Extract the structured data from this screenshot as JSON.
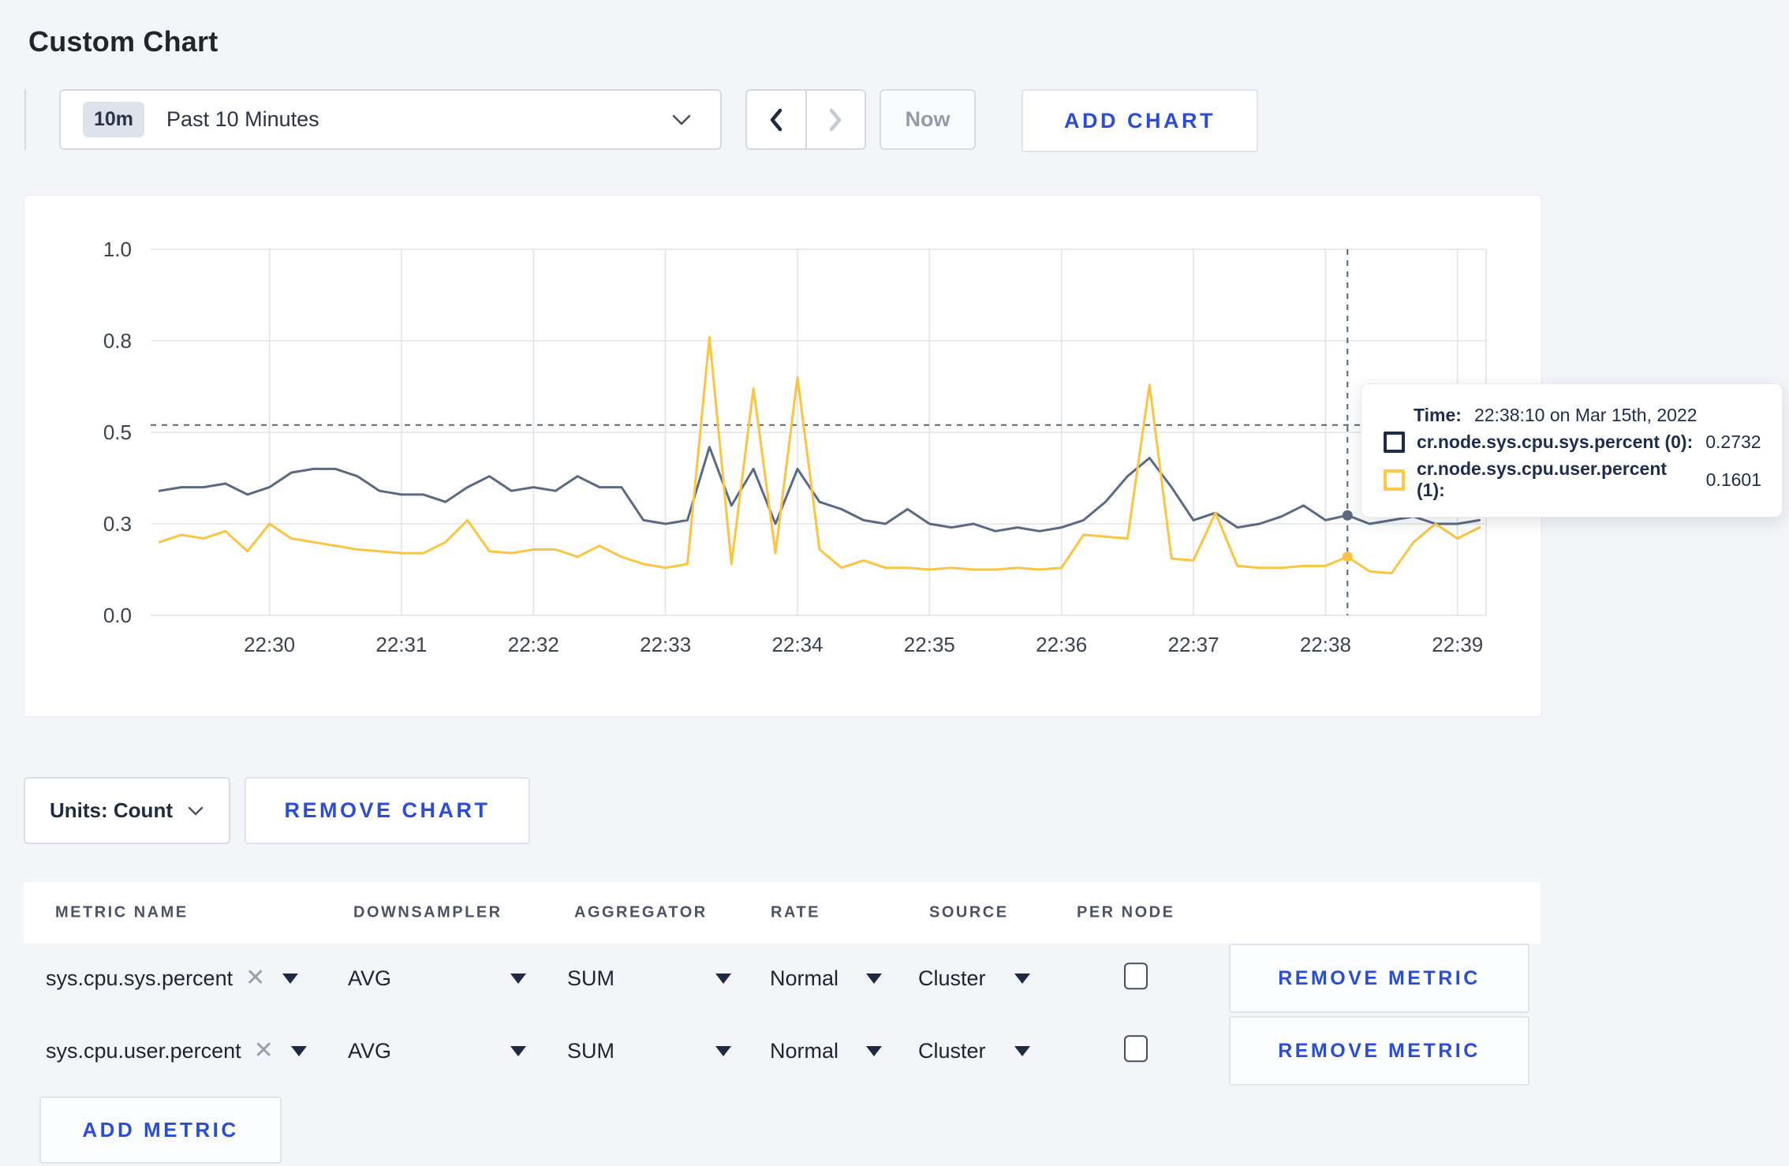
{
  "page": {
    "title": "Custom Chart",
    "accent_blue": "#2a4dd4",
    "background": "#f4f5f9"
  },
  "toolbar": {
    "time_window": {
      "badge": "10m",
      "label": "Past 10 Minutes"
    },
    "now_label": "Now",
    "add_chart_label": "ADD CHART"
  },
  "chart_tooltip": {
    "time_label": "Time:",
    "time_value": "22:38:10 on Mar 15th, 2022",
    "entries": [
      {
        "label": "cr.node.sys.cpu.sys.percent (0):",
        "value": "0.2732",
        "color": "#1c2b4a"
      },
      {
        "label": "cr.node.sys.cpu.user.percent (1):",
        "value": "0.1601",
        "color": "#ffc845"
      }
    ]
  },
  "chart_data": {
    "type": "line",
    "title": "",
    "grid": true,
    "legend": "hover-tooltip",
    "x_unit": "seconds after 22:29:00",
    "x_domain": [
      6,
      613
    ],
    "y_domain": [
      0,
      1
    ],
    "x_ticks": [
      {
        "label": "22:30",
        "t": 60
      },
      {
        "label": "22:31",
        "t": 120
      },
      {
        "label": "22:32",
        "t": 180
      },
      {
        "label": "22:33",
        "t": 240
      },
      {
        "label": "22:34",
        "t": 300
      },
      {
        "label": "22:35",
        "t": 360
      },
      {
        "label": "22:36",
        "t": 420
      },
      {
        "label": "22:37",
        "t": 480
      },
      {
        "label": "22:38",
        "t": 540
      },
      {
        "label": "22:39",
        "t": 600
      }
    ],
    "y_ticks": [
      {
        "label": "0.0",
        "v": 0
      },
      {
        "label": "0.3",
        "v": 0.25
      },
      {
        "label": "0.5",
        "v": 0.5
      },
      {
        "label": "0.8",
        "v": 0.75
      },
      {
        "label": "1.0",
        "v": 1
      }
    ],
    "crosshair": {
      "t": 550,
      "y": 0.52,
      "time": "22:38:10"
    },
    "series": [
      {
        "name": "cr.node.sys.cpu.sys.percent (0)",
        "color": "#5b6a84",
        "t_start": 10,
        "t_step": 10,
        "values": [
          0.34,
          0.35,
          0.35,
          0.36,
          0.33,
          0.35,
          0.39,
          0.4,
          0.4,
          0.38,
          0.34,
          0.33,
          0.33,
          0.31,
          0.35,
          0.38,
          0.34,
          0.35,
          0.34,
          0.38,
          0.35,
          0.35,
          0.26,
          0.25,
          0.26,
          0.46,
          0.3,
          0.4,
          0.25,
          0.4,
          0.31,
          0.29,
          0.26,
          0.25,
          0.29,
          0.25,
          0.24,
          0.25,
          0.23,
          0.24,
          0.23,
          0.24,
          0.26,
          0.31,
          0.38,
          0.43,
          0.35,
          0.26,
          0.28,
          0.24,
          0.25,
          0.27,
          0.3,
          0.26,
          0.2732,
          0.25,
          0.26,
          0.27,
          0.25,
          0.25,
          0.26
        ]
      },
      {
        "name": "cr.node.sys.cpu.user.percent (1)",
        "color": "#fbc542",
        "t_start": 10,
        "t_step": 10,
        "values": [
          0.2,
          0.22,
          0.21,
          0.23,
          0.175,
          0.25,
          0.21,
          0.2,
          0.19,
          0.18,
          0.175,
          0.17,
          0.17,
          0.2,
          0.26,
          0.175,
          0.17,
          0.18,
          0.18,
          0.16,
          0.19,
          0.16,
          0.14,
          0.13,
          0.14,
          0.76,
          0.14,
          0.62,
          0.17,
          0.65,
          0.18,
          0.13,
          0.15,
          0.13,
          0.13,
          0.125,
          0.13,
          0.125,
          0.125,
          0.13,
          0.125,
          0.13,
          0.22,
          0.215,
          0.21,
          0.63,
          0.155,
          0.15,
          0.28,
          0.135,
          0.13,
          0.13,
          0.135,
          0.135,
          0.1601,
          0.12,
          0.115,
          0.2,
          0.25,
          0.21,
          0.24
        ]
      }
    ]
  },
  "chart_footer": {
    "units_label": "Units: Count",
    "remove_chart_label": "REMOVE CHART"
  },
  "metrics_table": {
    "headers": [
      "METRIC NAME",
      "DOWNSAMPLER",
      "AGGREGATOR",
      "RATE",
      "SOURCE",
      "PER NODE"
    ],
    "rows": [
      {
        "metric_name": "sys.cpu.sys.percent",
        "downsampler": "AVG",
        "aggregator": "SUM",
        "rate": "Normal",
        "source": "Cluster",
        "per_node_checked": false,
        "remove_label": "REMOVE METRIC"
      },
      {
        "metric_name": "sys.cpu.user.percent",
        "downsampler": "AVG",
        "aggregator": "SUM",
        "rate": "Normal",
        "source": "Cluster",
        "per_node_checked": false,
        "remove_label": "REMOVE METRIC"
      }
    ],
    "add_metric_label": "ADD METRIC"
  }
}
